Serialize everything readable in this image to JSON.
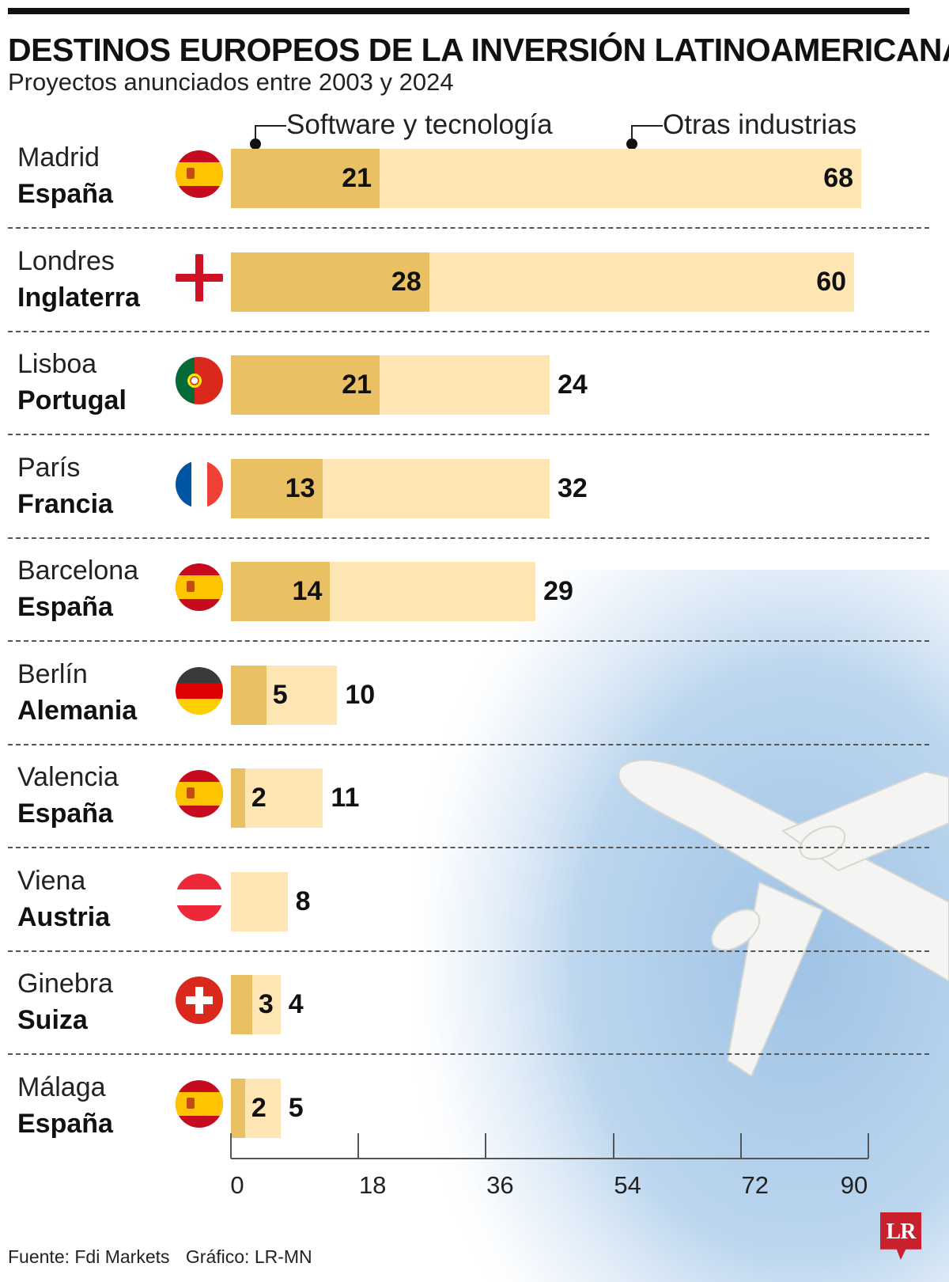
{
  "header": {
    "title": "DESTINOS EUROPEOS DE LA INVERSIÓN LATINOAMERICANA",
    "subtitle": "Proyectos anunciados entre 2003 y 2024"
  },
  "legend": {
    "software": "Software y tecnología",
    "otras": "Otras industrias"
  },
  "colors": {
    "software": "#e9c063",
    "otras": "#fde6b4",
    "brand": "#c8202c"
  },
  "chart_data": {
    "type": "bar",
    "orientation": "horizontal",
    "stacked": true,
    "title": "DESTINOS EUROPEOS DE LA INVERSIÓN LATINOAMERICANA",
    "subtitle": "Proyectos anunciados entre 2003 y 2024",
    "xlim": [
      0,
      90
    ],
    "ticks": [
      0,
      18,
      36,
      54,
      72,
      90
    ],
    "series": [
      {
        "name": "Software y tecnología",
        "values": [
          21,
          28,
          21,
          13,
          14,
          5,
          2,
          0,
          3,
          2
        ]
      },
      {
        "name": "Otras industrias",
        "values": [
          68,
          60,
          24,
          32,
          29,
          10,
          11,
          8,
          4,
          5
        ]
      }
    ],
    "rows": [
      {
        "city": "Madrid",
        "country": "España",
        "flag": "spain-flag-icon",
        "software": 21,
        "otras": 68
      },
      {
        "city": "Londres",
        "country": "Inglaterra",
        "flag": "england-flag-icon",
        "software": 28,
        "otras": 60
      },
      {
        "city": "Lisboa",
        "country": "Portugal",
        "flag": "portugal-flag-icon",
        "software": 21,
        "otras": 24
      },
      {
        "city": "París",
        "country": "Francia",
        "flag": "france-flag-icon",
        "software": 13,
        "otras": 32
      },
      {
        "city": "Barcelona",
        "country": "España",
        "flag": "spain-flag-icon",
        "software": 14,
        "otras": 29
      },
      {
        "city": "Berlín",
        "country": "Alemania",
        "flag": "germany-flag-icon",
        "software": 5,
        "otras": 10
      },
      {
        "city": "Valencia",
        "country": "España",
        "flag": "spain-flag-icon",
        "software": 2,
        "otras": 11
      },
      {
        "city": "Viena",
        "country": "Austria",
        "flag": "austria-flag-icon",
        "software": null,
        "otras": 8
      },
      {
        "city": "Ginebra",
        "country": "Suiza",
        "flag": "switzerland-flag-icon",
        "software": 3,
        "otras": 4
      },
      {
        "city": "Málaga",
        "country": "España",
        "flag": "spain-flag-icon",
        "software": 2,
        "otras": 5
      }
    ]
  },
  "footer": {
    "source": "Fuente: Fdi Markets",
    "credit": "Gráfico: LR-MN",
    "logo": "LR"
  }
}
